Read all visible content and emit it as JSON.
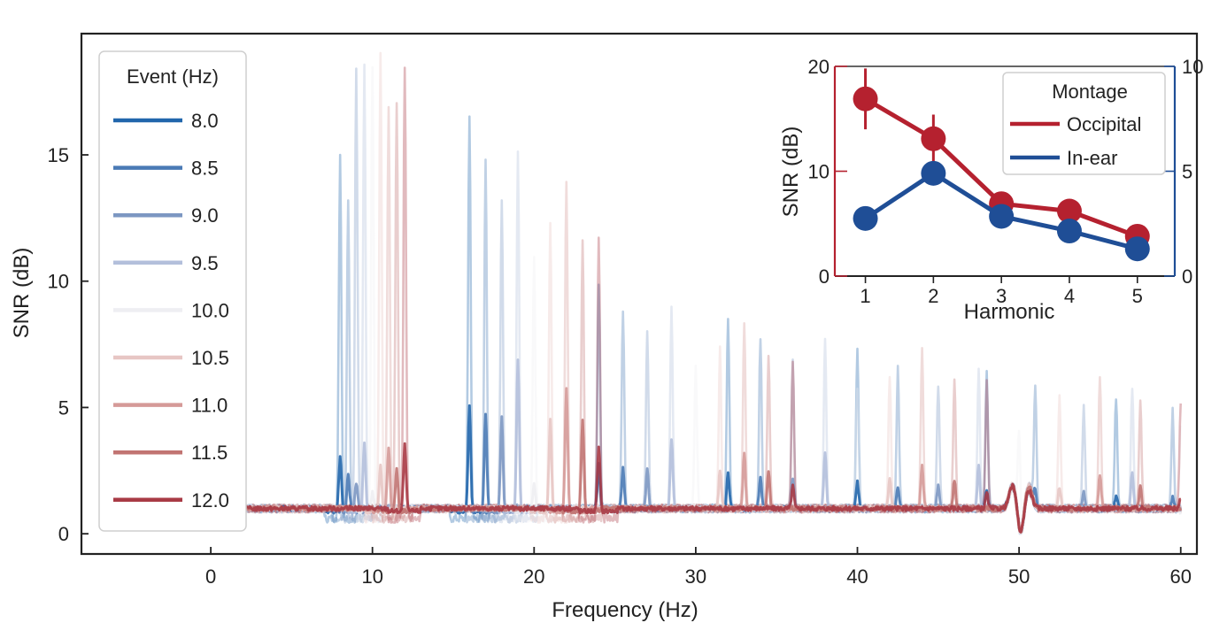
{
  "chart_data": [
    {
      "type": "line",
      "title": "",
      "xlabel": "Frequency (Hz)",
      "ylabel": "SNR (dB)",
      "xlim": [
        -8,
        61
      ],
      "ylim": [
        -0.8,
        19.8
      ],
      "xticks": [
        0,
        10,
        20,
        30,
        40,
        50,
        60
      ],
      "yticks": [
        0,
        5,
        10,
        15
      ],
      "baseline": 1.0,
      "x_start": 2,
      "x_end": 60,
      "legend": {
        "title": "Event (Hz)",
        "placement": "top-left"
      },
      "series": [
        {
          "name": "8.0",
          "color": "#2166ac",
          "fund_peak": 15.0,
          "harm_peak": 16.5,
          "emph_peak": 3.0,
          "emph_harm": 5.0
        },
        {
          "name": "8.5",
          "color": "#4a7ab5",
          "fund_peak": 13.2,
          "harm_peak": 14.8,
          "emph_peak": 2.4,
          "emph_harm": 4.7
        },
        {
          "name": "9.0",
          "color": "#7c97c2",
          "fund_peak": 18.3,
          "harm_peak": 13.2,
          "emph_peak": 2.0,
          "emph_harm": 4.6
        },
        {
          "name": "9.5",
          "color": "#b3bfdb",
          "fund_peak": 18.7,
          "harm_peak": 15.0,
          "emph_peak": 3.6,
          "emph_harm": 6.9
        },
        {
          "name": "10.0",
          "color": "#eeeef2",
          "fund_peak": 18.5,
          "harm_peak": 11.0,
          "emph_peak": 1.6,
          "emph_harm": 2.0
        },
        {
          "name": "10.5",
          "color": "#e7c6c4",
          "fund_peak": 19.0,
          "harm_peak": 12.2,
          "emph_peak": 2.7,
          "emph_harm": 4.5
        },
        {
          "name": "11.0",
          "color": "#d59a98",
          "fund_peak": 16.8,
          "harm_peak": 14.0,
          "emph_peak": 3.4,
          "emph_harm": 5.8
        },
        {
          "name": "11.5",
          "color": "#c17472",
          "fund_peak": 17.1,
          "harm_peak": 11.7,
          "emph_peak": 2.5,
          "emph_harm": 4.5
        },
        {
          "name": "12.0",
          "color": "#a83a45",
          "fund_peak": 18.6,
          "harm_peak": 11.6,
          "emph_peak": 3.5,
          "emph_harm": 3.4
        }
      ]
    },
    {
      "type": "line",
      "title": "",
      "xlabel": "Harmonic",
      "ylabel": "SNR (dB)",
      "xlim": [
        0.55,
        5.55
      ],
      "ylim": [
        0,
        20
      ],
      "y2lim": [
        0,
        10
      ],
      "xticks": [
        1,
        2,
        3,
        4,
        5
      ],
      "yticks": [
        0,
        10,
        20
      ],
      "y2ticks": [
        0,
        5,
        10
      ],
      "categories": [
        1,
        2,
        3,
        4,
        5
      ],
      "legend": {
        "title": "Montage",
        "placement": "top-right"
      },
      "series": [
        {
          "name": "Occipital",
          "color": "#b5212f",
          "values": [
            16.9,
            13.1,
            6.9,
            6.2,
            3.8
          ],
          "err": [
            2.9,
            2.3,
            0.6,
            0.5,
            0.4
          ]
        },
        {
          "name": "In-ear",
          "color": "#1f4e96",
          "values": [
            5.5,
            9.8,
            5.7,
            4.3,
            2.6
          ],
          "err": [
            0.4,
            1.0,
            0.4,
            0.3,
            0.3
          ]
        }
      ]
    }
  ]
}
